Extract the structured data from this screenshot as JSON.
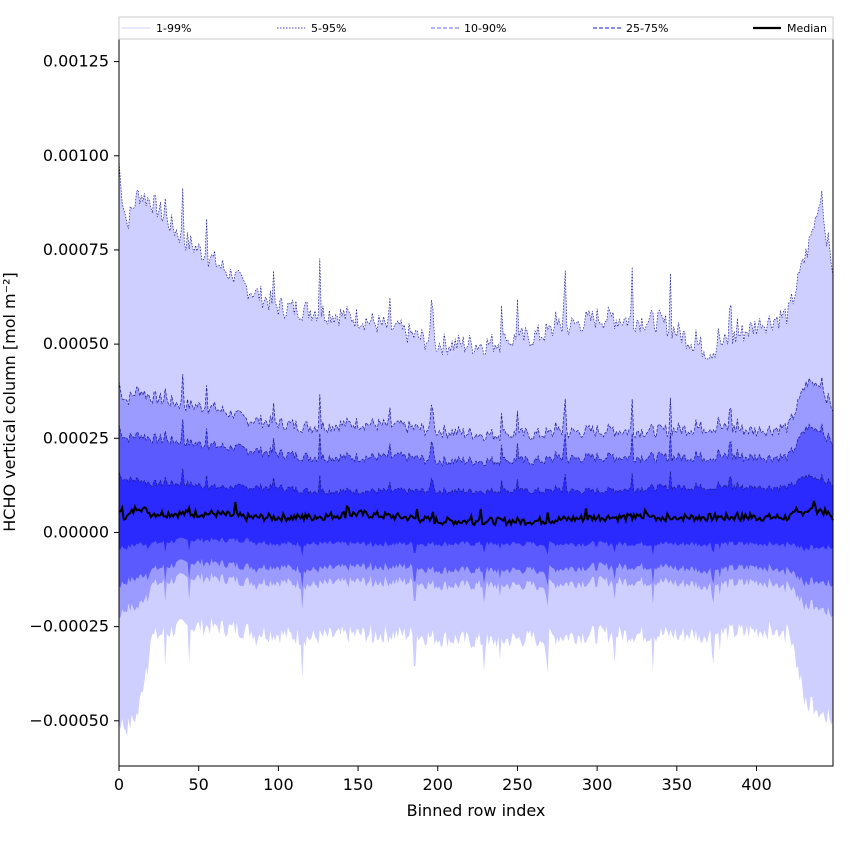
{
  "chart_data": {
    "type": "area",
    "title": "",
    "xlabel": "Binned row index",
    "ylabel": "HCHO vertical column [mol m⁻²]",
    "xlim": [
      0,
      448
    ],
    "ylim": [
      -0.00062,
      0.00131
    ],
    "x_ticks": [
      0,
      50,
      100,
      150,
      200,
      250,
      300,
      350,
      400
    ],
    "x_tick_labels": [
      "0",
      "50",
      "100",
      "150",
      "200",
      "250",
      "300",
      "350",
      "400"
    ],
    "y_ticks": [
      -0.0005,
      -0.00025,
      0,
      0.00025,
      0.0005,
      0.00075,
      0.001,
      0.00125
    ],
    "y_tick_labels": [
      "−0.00050",
      "−0.00025",
      "0.00000",
      "0.00025",
      "0.00050",
      "0.00075",
      "0.00100",
      "0.00125"
    ],
    "legend_location": "top",
    "legend": [
      {
        "label": "1-99%",
        "color": "#d0d0ff",
        "style": "solid-thin"
      },
      {
        "label": "5-95%",
        "color": "#4040c0",
        "style": "dotted"
      },
      {
        "label": "10-90%",
        "color": "#8888ee",
        "style": "dashed"
      },
      {
        "label": "25-75%",
        "color": "#4444dd",
        "style": "dashed"
      },
      {
        "label": "Median",
        "color": "#000000",
        "style": "solid-thick"
      }
    ],
    "x_knots": [
      0,
      5,
      12,
      20,
      40,
      60,
      80,
      100,
      120,
      150,
      180,
      200,
      230,
      260,
      300,
      340,
      370,
      400,
      420,
      432,
      440,
      448
    ],
    "bands": [
      {
        "name": "1-99%",
        "color": "#cfcfff",
        "upper": [
          0.00095,
          0.00082,
          0.0009,
          0.00088,
          0.00078,
          0.00072,
          0.00065,
          0.0006,
          0.00059,
          0.00057,
          0.00053,
          0.0005,
          0.0005,
          0.00052,
          0.00057,
          0.00056,
          0.00048,
          0.00055,
          0.00058,
          0.00075,
          0.00088,
          0.0007
        ],
        "lower": [
          -0.0005,
          -0.00052,
          -0.00048,
          -0.00028,
          -0.00025,
          -0.00025,
          -0.00026,
          -0.00027,
          -0.00028,
          -0.00027,
          -0.00027,
          -0.00028,
          -0.00029,
          -0.00028,
          -0.00027,
          -0.00027,
          -0.00027,
          -0.00026,
          -0.00026,
          -0.00045,
          -0.00048,
          -0.0005
        ]
      },
      {
        "name": "5-95%",
        "color": "#9a9aff",
        "upper": [
          0.00038,
          0.00035,
          0.00038,
          0.00036,
          0.00034,
          0.00033,
          0.0003,
          0.00029,
          0.00028,
          0.00029,
          0.00028,
          0.00027,
          0.00026,
          0.00026,
          0.00027,
          0.00027,
          0.00028,
          0.00027,
          0.00028,
          0.0004,
          0.00039,
          0.00033
        ],
        "lower": [
          -0.00022,
          -0.0002,
          -0.0002,
          -0.00014,
          -0.00012,
          -0.00012,
          -0.00013,
          -0.00013,
          -0.00014,
          -0.00013,
          -0.00013,
          -0.00014,
          -0.00014,
          -0.00014,
          -0.00013,
          -0.00013,
          -0.00014,
          -0.00013,
          -0.00014,
          -0.00019,
          -0.0002,
          -0.00022
        ]
      },
      {
        "name": "10-90%",
        "color": "#5a5aff",
        "upper": [
          0.00027,
          0.00025,
          0.00026,
          0.00025,
          0.00024,
          0.00023,
          0.00022,
          0.00021,
          0.0002,
          0.0002,
          0.0002,
          0.00019,
          0.00019,
          0.00019,
          0.0002,
          0.0002,
          0.0002,
          0.0002,
          0.0002,
          0.00028,
          0.00027,
          0.00024
        ],
        "lower": [
          -0.00014,
          -0.00013,
          -0.00012,
          -0.0001,
          -8e-05,
          -8e-05,
          -9e-05,
          -9e-05,
          -0.0001,
          -9e-05,
          -9e-05,
          -0.0001,
          -0.0001,
          -0.0001,
          -9e-05,
          -9e-05,
          -0.0001,
          -9e-05,
          -0.0001,
          -0.00013,
          -0.00013,
          -0.00014
        ]
      },
      {
        "name": "25-75%",
        "color": "#2a2aff",
        "upper": [
          0.00015,
          0.00014,
          0.00014,
          0.00013,
          0.00013,
          0.00012,
          0.00012,
          0.00012,
          0.00011,
          0.00011,
          0.00011,
          0.00011,
          0.00011,
          0.00011,
          0.00011,
          0.00012,
          0.00012,
          0.00012,
          0.00012,
          0.00015,
          0.00014,
          0.00013
        ],
        "lower": [
          -4e-05,
          -4e-05,
          -3e-05,
          -3e-05,
          -2e-05,
          -2e-05,
          -2e-05,
          -3e-05,
          -3e-05,
          -3e-05,
          -3e-05,
          -3e-05,
          -3e-05,
          -3e-05,
          -3e-05,
          -3e-05,
          -3e-05,
          -3e-05,
          -3e-05,
          -4e-05,
          -4e-05,
          -4e-05
        ]
      }
    ],
    "median": {
      "name": "Median",
      "color": "#000000",
      "values": [
        5e-05,
        4e-05,
        7e-05,
        5e-05,
        5e-05,
        5e-05,
        4e-05,
        4e-05,
        4e-05,
        5e-05,
        4e-05,
        3e-05,
        3e-05,
        3e-05,
        4e-05,
        4e-05,
        4e-05,
        4e-05,
        4e-05,
        6e-05,
        6e-05,
        4e-05
      ]
    }
  }
}
